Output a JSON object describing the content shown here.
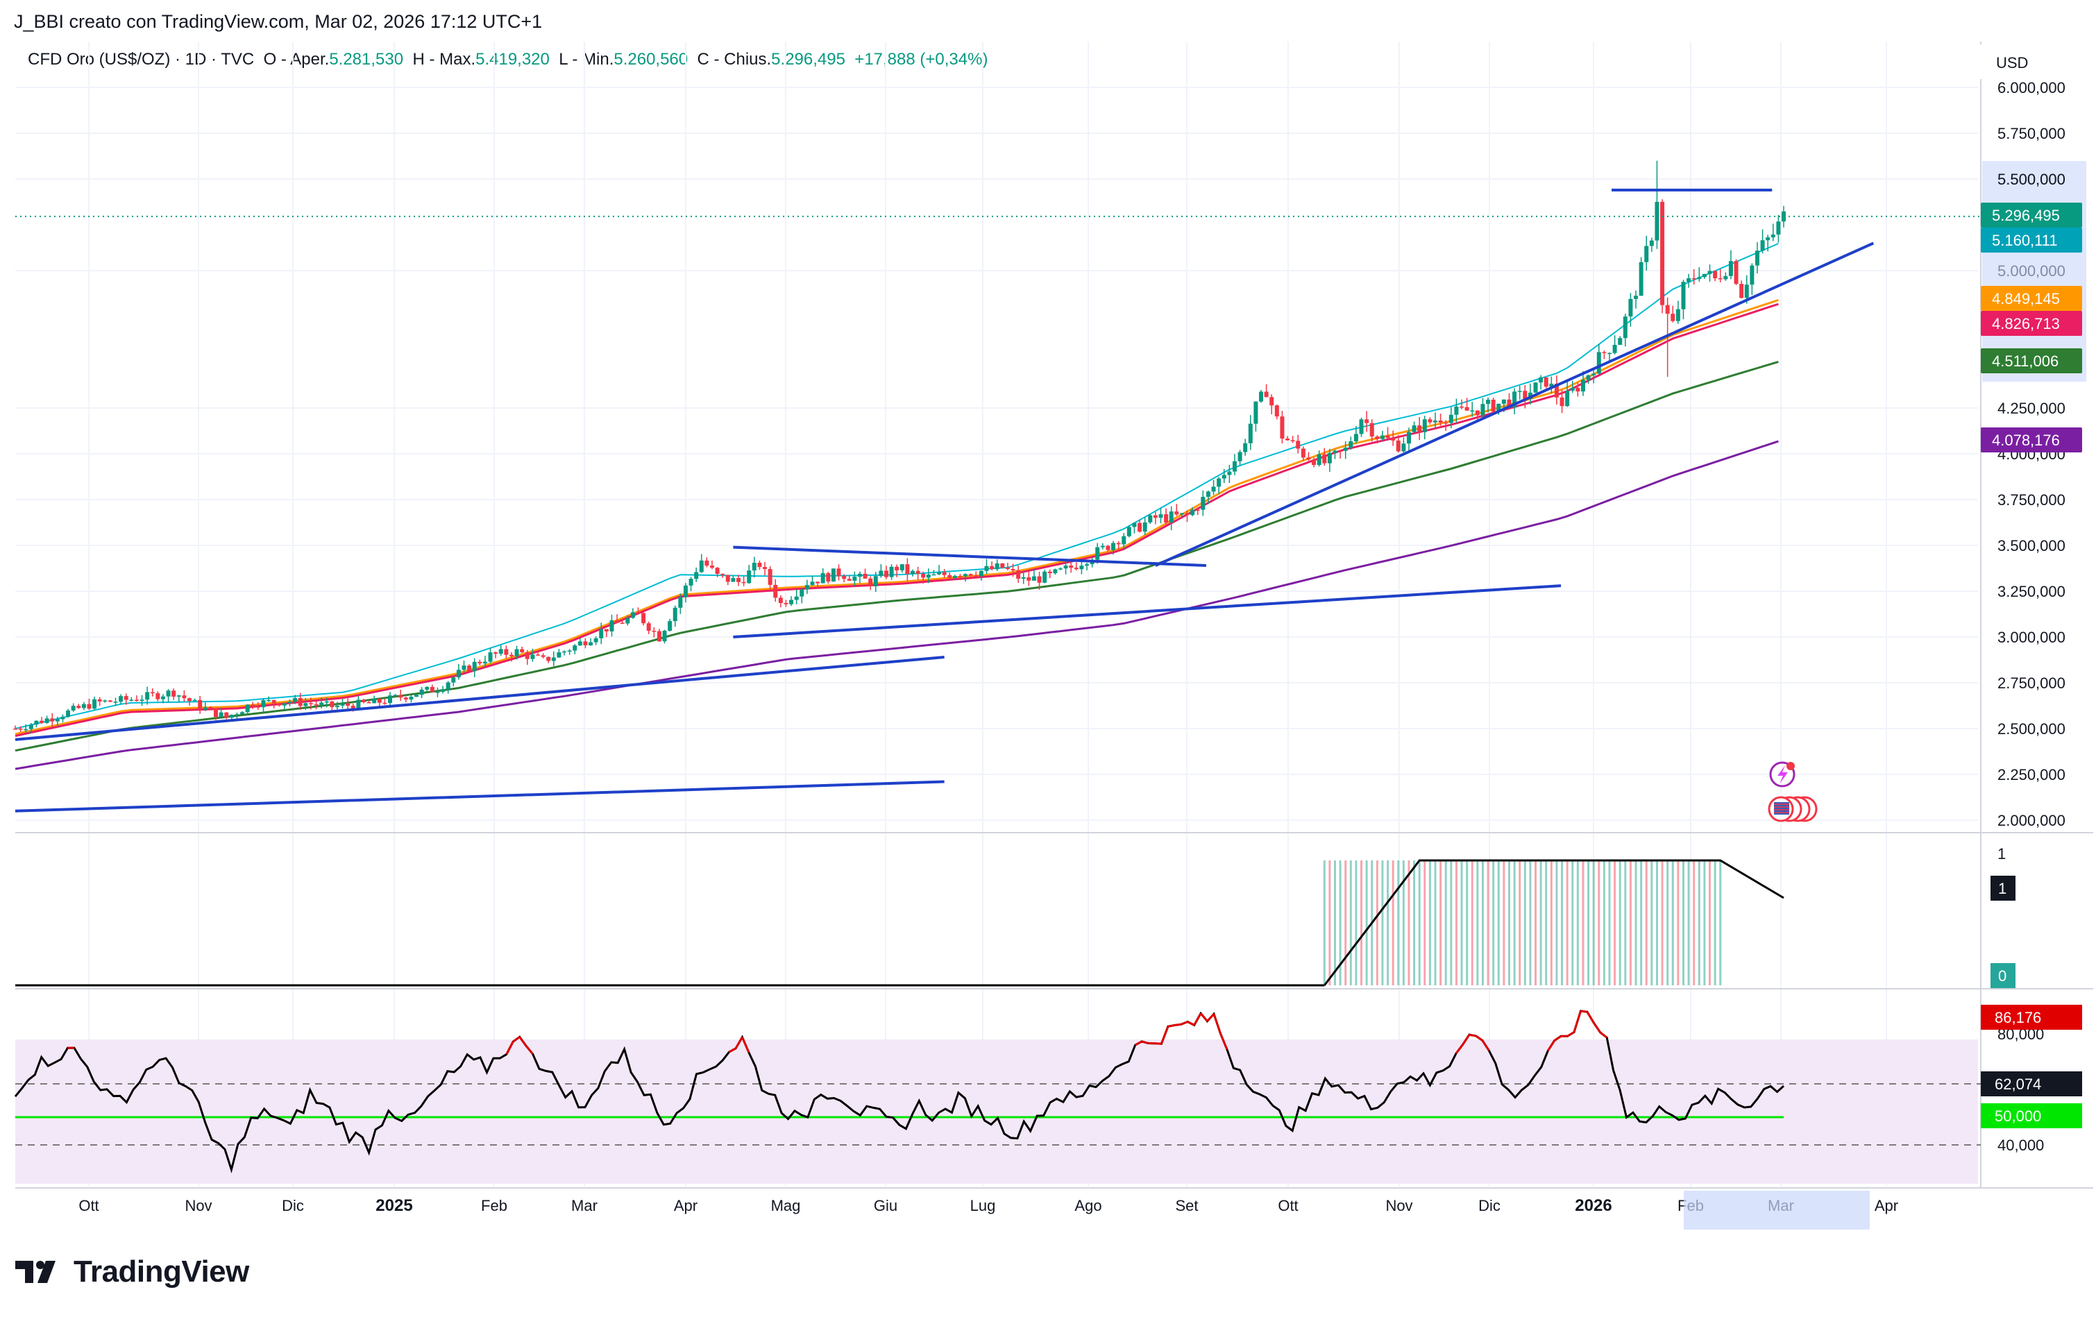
{
  "header": {
    "attribution": "J_BBI creato con TradingView.com, Mar 02, 2026 17:12 UTC+1"
  },
  "legend": {
    "symbol": "CFD Oro (US$/OZ) · 1D · TVC",
    "open_label": "O - Aper.",
    "open_value": "5.281,530",
    "high_label": "H - Max.",
    "high_value": "5.419,320",
    "low_label": "L - Min.",
    "low_value": "5.260,560",
    "close_label": "C - Chius.",
    "close_value": "5.296,495",
    "change": "+17,888 (+0,34%)"
  },
  "currency_button": "USD",
  "brand": {
    "name": "TradingView",
    "icon": "tradingview-logo-icon"
  },
  "colors": {
    "up": "#089981",
    "down": "#f23645",
    "trendline": "#1e40c8",
    "ma_fast": "#00bcd4",
    "ma_orange": "#ff9800",
    "ma_red": "#e91e63",
    "ma_green": "#2e7d32",
    "ma_purple": "#7b1fa2",
    "rsi_line": "#000000",
    "rsi_overbought": "#e00000",
    "rsi_mid": "#00e600",
    "rsi_band": "#f3e8f7"
  },
  "chart_data": [
    {
      "type": "candlestick",
      "title": "CFD Oro (US$/OZ) · 1D · TVC",
      "x_ticks": [
        "Ott",
        "Nov",
        "Dic",
        "2025",
        "Feb",
        "Mar",
        "Apr",
        "Mag",
        "Giu",
        "Lug",
        "Ago",
        "Set",
        "Ott",
        "Nov",
        "Dic",
        "2026",
        "Feb",
        "Mar",
        "Apr"
      ],
      "x_ticks_bold": [
        "2025",
        "2026"
      ],
      "y_ticks": [
        "2.000,000",
        "2.250,000",
        "2.500,000",
        "2.750,000",
        "3.000,000",
        "3.250,000",
        "3.500,000",
        "3.750,000",
        "4.000,000",
        "4.250,000",
        "5.000,000",
        "5.500,000",
        "5.750,000",
        "6.000,000"
      ],
      "ylim": [
        2000,
        6000
      ],
      "price_close_path": [
        [
          0,
          2500
        ],
        [
          8,
          2570
        ],
        [
          15,
          2640
        ],
        [
          22,
          2660
        ],
        [
          30,
          2700
        ],
        [
          35,
          2620
        ],
        [
          40,
          2560
        ],
        [
          45,
          2640
        ],
        [
          52,
          2650
        ],
        [
          60,
          2620
        ],
        [
          68,
          2640
        ],
        [
          74,
          2680
        ],
        [
          80,
          2720
        ],
        [
          85,
          2820
        ],
        [
          90,
          2900
        ],
        [
          95,
          2920
        ],
        [
          100,
          2870
        ],
        [
          106,
          2950
        ],
        [
          112,
          3050
        ],
        [
          118,
          3120
        ],
        [
          122,
          3000
        ],
        [
          126,
          3220
        ],
        [
          130,
          3420
        ],
        [
          133,
          3330
        ],
        [
          137,
          3300
        ],
        [
          141,
          3400
        ],
        [
          145,
          3180
        ],
        [
          150,
          3300
        ],
        [
          156,
          3350
        ],
        [
          162,
          3300
        ],
        [
          167,
          3380
        ],
        [
          172,
          3320
        ],
        [
          178,
          3350
        ],
        [
          183,
          3360
        ],
        [
          187,
          3380
        ],
        [
          191,
          3310
        ],
        [
          196,
          3330
        ],
        [
          200,
          3380
        ],
        [
          206,
          3480
        ],
        [
          210,
          3560
        ],
        [
          216,
          3650
        ],
        [
          222,
          3660
        ],
        [
          226,
          3780
        ],
        [
          229,
          3900
        ],
        [
          232,
          4000
        ],
        [
          235,
          4250
        ],
        [
          237,
          4350
        ],
        [
          240,
          4100
        ],
        [
          244,
          4000
        ],
        [
          248,
          3950
        ],
        [
          252,
          4020
        ],
        [
          255,
          4200
        ],
        [
          258,
          4100
        ],
        [
          262,
          4050
        ],
        [
          266,
          4150
        ],
        [
          270,
          4200
        ],
        [
          274,
          4230
        ],
        [
          278,
          4250
        ],
        [
          282,
          4280
        ],
        [
          286,
          4320
        ],
        [
          290,
          4400
        ],
        [
          293,
          4280
        ],
        [
          297,
          4400
        ],
        [
          300,
          4520
        ],
        [
          304,
          4650
        ],
        [
          307,
          4900
        ],
        [
          310,
          5200
        ],
        [
          311,
          5400
        ],
        [
          312,
          4800
        ],
        [
          314,
          4700
        ],
        [
          316,
          4900
        ],
        [
          319,
          5000
        ],
        [
          322,
          4950
        ],
        [
          325,
          5050
        ],
        [
          327,
          4880
        ],
        [
          330,
          5100
        ],
        [
          333,
          5200
        ],
        [
          335,
          5296
        ]
      ],
      "candle_count": 336,
      "series": [
        {
          "name": "5.160,111",
          "last_value": 5160.111,
          "values": [
            2500,
            2640,
            2650,
            2700,
            2880,
            3080,
            3340,
            3330,
            3340,
            3380,
            3580,
            3920,
            4120,
            4260,
            4450,
            4900,
            5160
          ]
        },
        {
          "name": "4.849,145",
          "last_value": 4849.145,
          "values": [
            2470,
            2600,
            2620,
            2680,
            2800,
            2980,
            3230,
            3270,
            3300,
            3350,
            3480,
            3820,
            4040,
            4180,
            4350,
            4650,
            4849
          ]
        },
        {
          "name": "4.826,713",
          "last_value": 4826.713,
          "values": [
            2460,
            2590,
            2610,
            2670,
            2790,
            2970,
            3220,
            3260,
            3290,
            3340,
            3470,
            3800,
            4020,
            4160,
            4330,
            4630,
            4827
          ]
        },
        {
          "name": "4.511,006",
          "last_value": 4511.006,
          "values": [
            2380,
            2500,
            2570,
            2640,
            2720,
            2850,
            3020,
            3140,
            3200,
            3250,
            3330,
            3540,
            3760,
            3920,
            4100,
            4330,
            4511
          ]
        },
        {
          "name": "4.078,176",
          "last_value": 4078.176,
          "values": [
            2280,
            2380,
            2450,
            2520,
            2590,
            2680,
            2780,
            2880,
            2940,
            3000,
            3070,
            3210,
            3360,
            3500,
            3650,
            3880,
            4078
          ]
        }
      ],
      "trendlines": [
        {
          "from": [
            0,
            2440
          ],
          "to": [
            110,
            2890
          ]
        },
        {
          "from": [
            0,
            2050
          ],
          "to": [
            110,
            2210
          ]
        },
        {
          "from": [
            85,
            3000
          ],
          "to": [
            183,
            3280
          ]
        },
        {
          "from": [
            85,
            3490
          ],
          "to": [
            141,
            3390
          ]
        },
        {
          "from": [
            135,
            3390
          ],
          "to": [
            220,
            5150
          ]
        },
        {
          "from": [
            189,
            5440
          ],
          "to": [
            208,
            5440
          ]
        }
      ],
      "price_badges": [
        "5.296,495",
        "5.160,111",
        "4.849,145",
        "4.826,713",
        "4.511,006",
        "4.078,176"
      ],
      "price_label_extra": "5.500,000"
    },
    {
      "type": "area",
      "title": "",
      "ylim": [
        0,
        1
      ],
      "y_ticks": [
        "0",
        "1"
      ],
      "badge_top": "1",
      "badge_bottom": "0",
      "active_from": 248,
      "ramp_end": 266,
      "flat_end": 323,
      "values_note": "0 until index 248, rises to 1 by 266, holds to 323, declines toward 0.7 at 335"
    },
    {
      "type": "line",
      "title": "",
      "ylim": [
        30,
        95
      ],
      "y_ticks": [
        "40,000",
        "80,000"
      ],
      "levels": {
        "upper": 70,
        "mid": 50,
        "lower": 40
      },
      "badges": [
        "86,176",
        "62,074",
        "50,000"
      ],
      "values": [
        60,
        68,
        72,
        74,
        65,
        55,
        60,
        70,
        68,
        58,
        42,
        34,
        48,
        52,
        46,
        58,
        52,
        44,
        40,
        54,
        48,
        56,
        64,
        70,
        68,
        75,
        78,
        66,
        60,
        52,
        68,
        72,
        60,
        48,
        56,
        66,
        72,
        78,
        62,
        54,
        48,
        60,
        58,
        52,
        50,
        46,
        54,
        50,
        56,
        52,
        48,
        44,
        50,
        58,
        56,
        62,
        68,
        75,
        78,
        82,
        84,
        86,
        70,
        62,
        52,
        48,
        56,
        64,
        58,
        54,
        60,
        66,
        62,
        70,
        82,
        74,
        58,
        62,
        72,
        80,
        88,
        78,
        52,
        48,
        54,
        50,
        56,
        58,
        54,
        60,
        62
      ]
    }
  ]
}
